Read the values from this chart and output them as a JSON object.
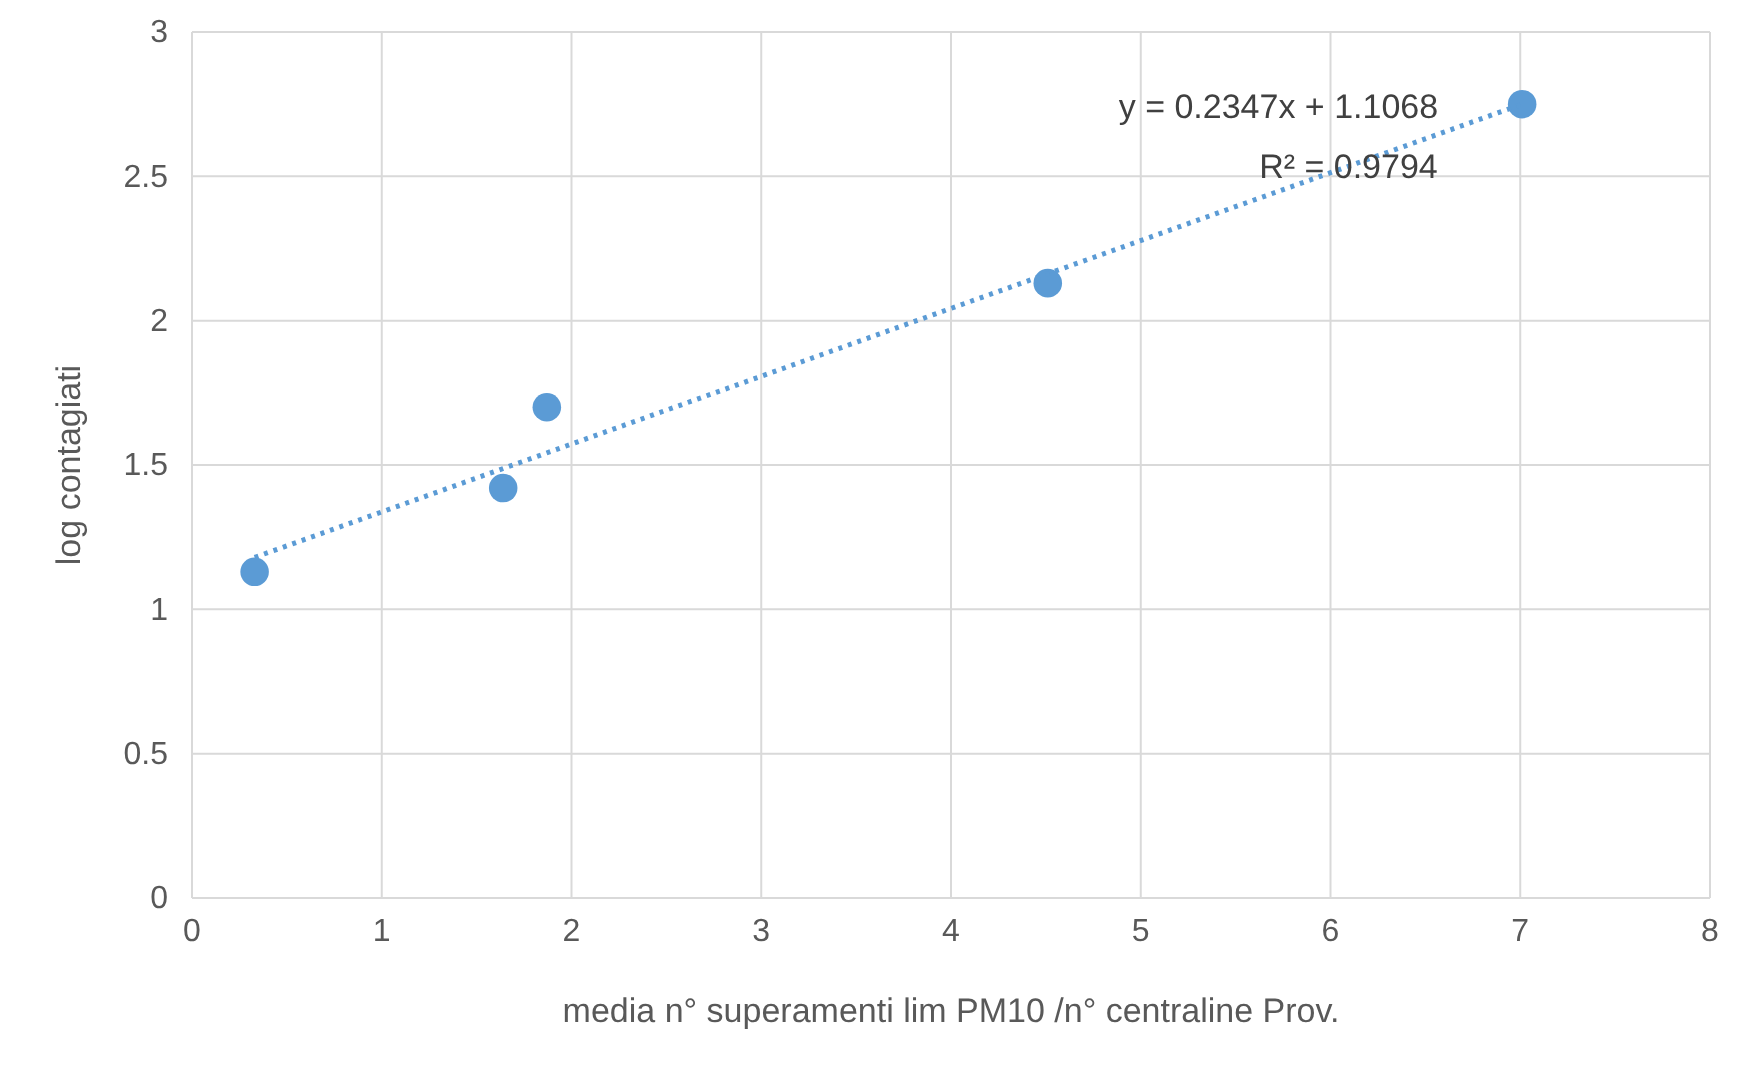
{
  "chart_data": {
    "type": "scatter",
    "xlabel": "media n° superamenti lim PM10 /n° centraline Prov.",
    "ylabel": "log contagiati",
    "xlim": [
      0,
      8
    ],
    "xticks": [
      0,
      1,
      2,
      3,
      4,
      5,
      6,
      7,
      8
    ],
    "ylim": [
      0,
      3
    ],
    "yticks": [
      0,
      {
        "value": 0.5,
        "label": "0.5"
      },
      1,
      {
        "value": 1.5,
        "label": "1.5"
      },
      2,
      {
        "value": 2.5,
        "label": "2.5"
      },
      3
    ],
    "grid": true,
    "marker": "circle",
    "series": [
      {
        "color": "#5b9bd5",
        "x": [
          0.33,
          1.64,
          1.87,
          4.51,
          7.01
        ],
        "values": [
          1.13,
          1.42,
          1.7,
          2.13,
          2.75
        ]
      },
      {
        "type": "line",
        "color": "#5b9bd5",
        "line_style": "dotted",
        "marker": "none",
        "x": [
          0.33,
          7.01
        ],
        "values": [
          1.18,
          2.75
        ]
      }
    ],
    "annotations": [
      "y = 0.2347x + 1.1068",
      "R² = 0.9794"
    ]
  }
}
